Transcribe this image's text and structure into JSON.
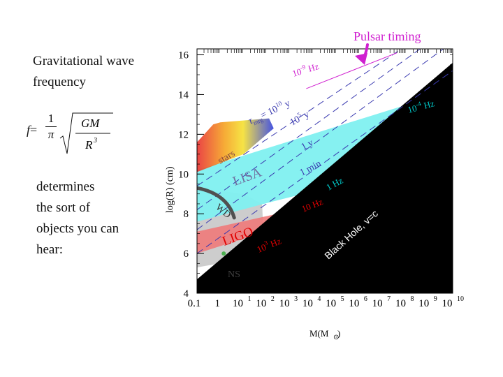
{
  "slide": {
    "title_lines": [
      "Gravitational wave",
      "frequency"
    ],
    "body_lines": [
      "determines",
      "the sort of",
      "objects you can",
      "hear:"
    ],
    "formula": {
      "lhs": "f",
      "equals": "=",
      "numerator": "1",
      "pi": "π",
      "radicand_num": "GM",
      "radicand_den": "R",
      "radicand_exp": "3"
    }
  },
  "chart_data": {
    "type": "area",
    "title": "",
    "xlabel": "M(M",
    "xlabel_subscript": "⊙",
    "xlabel_close": ")",
    "ylabel": "log(R) (cm)",
    "xscale": "log10",
    "xlim_log10": [
      -1,
      10
    ],
    "ylim": [
      4,
      16.5
    ],
    "x_ticks": [
      "0.1",
      "1",
      "10",
      "10",
      "10",
      "10",
      "10",
      "10",
      "10",
      "10",
      "10",
      "10"
    ],
    "x_tick_exponents": [
      "",
      "",
      "1",
      "2",
      "3",
      "4",
      "5",
      "6",
      "7",
      "8",
      "9",
      "10"
    ],
    "y_ticks": [
      "4",
      "6",
      "8",
      "10",
      "12",
      "14",
      "16"
    ],
    "frequency_lines": [
      {
        "label": "10",
        "exp": "-9",
        "unit": "Hz",
        "color": "#d020d0"
      },
      {
        "label": "10",
        "exp": "-4",
        "unit": "Hz",
        "color": "#00c8c8"
      },
      {
        "label": "1 Hz",
        "color": "#00c8c8"
      },
      {
        "label": "10 Hz",
        "color": "#e00000"
      },
      {
        "label": "10",
        "exp": "3",
        "unit": "Hz",
        "color": "#e00000"
      }
    ],
    "merger_time_lines": [
      {
        "label": "τ",
        "sub": "mrg",
        "value": "= 10",
        "exp": "10",
        "unit": "y"
      },
      {
        "label": "10",
        "exp": "5",
        "unit": "y"
      },
      {
        "label": "1 y"
      },
      {
        "label": "1 min"
      }
    ],
    "regions": [
      {
        "name": "LISA",
        "color": "#7ff0f0"
      },
      {
        "name": "LIGO",
        "color": "#f07a7a"
      },
      {
        "name": "stars"
      },
      {
        "name": "WD"
      },
      {
        "name": "NS"
      },
      {
        "name": "Black Hole, v=c",
        "color": "#000000"
      }
    ],
    "annotations": {
      "pulsar_timing": "Pulsar timing",
      "pulsar_color": "#d020d0"
    }
  }
}
